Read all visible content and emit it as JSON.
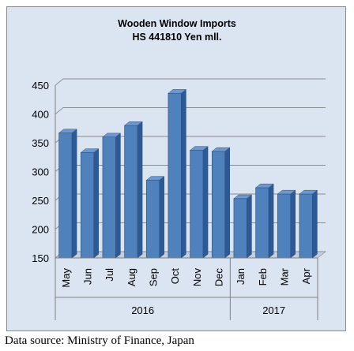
{
  "chart_data": {
    "type": "bar",
    "title": "Wooden Window Imports",
    "subtitle": "HS 441810 Yen mll.",
    "categories": [
      "May",
      "Jun",
      "Jul",
      "Aug",
      "Sep",
      "Oct",
      "Nov",
      "Dec",
      "Jan",
      "Feb",
      "Mar",
      "Apr"
    ],
    "groups": [
      {
        "label": "2016",
        "categories": [
          "May",
          "Jun",
          "Jul",
          "Aug",
          "Sep",
          "Oct",
          "Nov",
          "Dec"
        ]
      },
      {
        "label": "2017",
        "categories": [
          "Jan",
          "Feb",
          "Mar",
          "Apr"
        ]
      }
    ],
    "values": [
      367,
      333,
      360,
      380,
      285,
      436,
      337,
      335,
      253,
      272,
      261,
      261
    ],
    "ylim": [
      150,
      450
    ],
    "yticks": [
      "150",
      "200",
      "250",
      "300",
      "350",
      "400",
      "450"
    ],
    "grid": true,
    "legend": "none",
    "colors": {
      "bar_front": "#4f81bd",
      "bar_side": "#2c5a96",
      "bar_top": "#6d98cf",
      "wall": "#dbe5f1",
      "floor": "#c3cfdd"
    }
  },
  "source": "Data source: Ministry of Finance, Japan"
}
